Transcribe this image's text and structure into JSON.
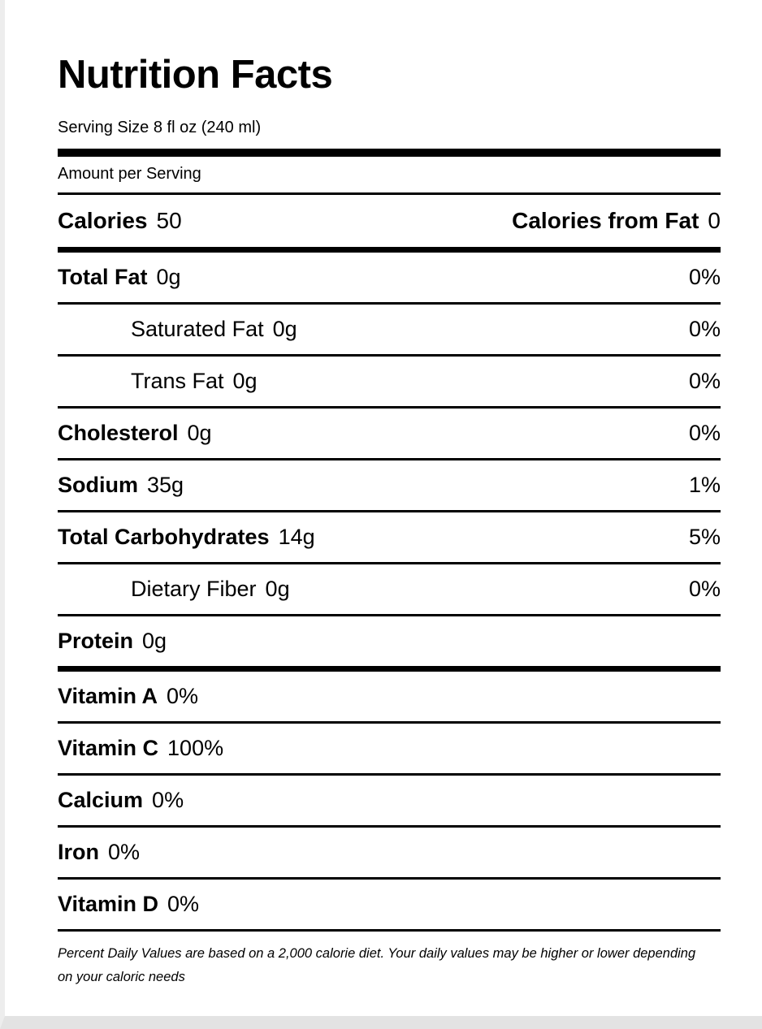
{
  "label": {
    "title": "Nutrition Facts",
    "serving_size": "Serving Size 8 fl oz (240 ml)",
    "amount_per_serving": "Amount per Serving",
    "calories": {
      "label": "Calories",
      "value": "50"
    },
    "calories_from_fat": {
      "label": "Calories from Fat",
      "value": "0"
    },
    "nutrients": [
      {
        "label": "Total Fat",
        "amount": "0g",
        "daily_value": "0%"
      },
      {
        "label": "Saturated Fat",
        "amount": "0g",
        "daily_value": "0%"
      },
      {
        "label": "Trans Fat",
        "amount": "0g",
        "daily_value": "0%"
      },
      {
        "label": "Cholesterol",
        "amount": "0g",
        "daily_value": "0%"
      },
      {
        "label": "Sodium",
        "amount": "35g",
        "daily_value": "1%"
      },
      {
        "label": "Total Carbohydrates",
        "amount": "14g",
        "daily_value": "5%"
      },
      {
        "label": "Dietary Fiber",
        "amount": "0g",
        "daily_value": "0%"
      },
      {
        "label": "Protein",
        "amount": "0g",
        "daily_value": ""
      }
    ],
    "vitamins": [
      {
        "label": "Vitamin A",
        "value": "0%"
      },
      {
        "label": "Vitamin C",
        "value": "100%"
      },
      {
        "label": "Calcium",
        "value": "0%"
      },
      {
        "label": "Iron",
        "value": "0%"
      },
      {
        "label": "Vitamin D",
        "value": "0%"
      }
    ],
    "footnote": "Percent Daily Values are based on a 2,000 calorie diet. Your daily values may be higher or lower depending on your caloric needs"
  },
  "colors": {
    "text": "#000000",
    "background": "#ffffff",
    "rule": "#000000"
  }
}
